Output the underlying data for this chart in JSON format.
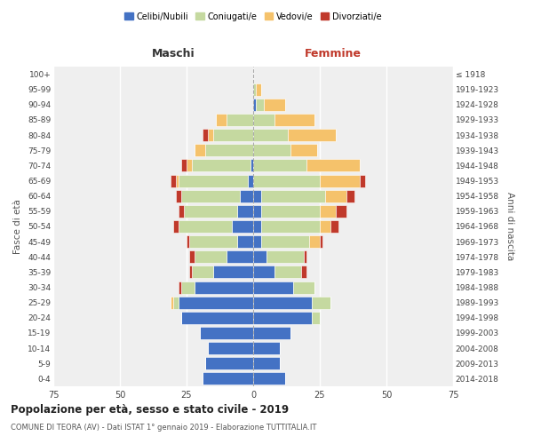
{
  "age_groups": [
    "0-4",
    "5-9",
    "10-14",
    "15-19",
    "20-24",
    "25-29",
    "30-34",
    "35-39",
    "40-44",
    "45-49",
    "50-54",
    "55-59",
    "60-64",
    "65-69",
    "70-74",
    "75-79",
    "80-84",
    "85-89",
    "90-94",
    "95-99",
    "100+"
  ],
  "birth_years": [
    "2014-2018",
    "2009-2013",
    "2004-2008",
    "1999-2003",
    "1994-1998",
    "1989-1993",
    "1984-1988",
    "1979-1983",
    "1974-1978",
    "1969-1973",
    "1964-1968",
    "1959-1963",
    "1954-1958",
    "1949-1953",
    "1944-1948",
    "1939-1943",
    "1934-1938",
    "1929-1933",
    "1924-1928",
    "1919-1923",
    "≤ 1918"
  ],
  "maschi": {
    "celibi": [
      19,
      18,
      17,
      20,
      27,
      28,
      22,
      15,
      10,
      6,
      8,
      6,
      5,
      2,
      1,
      0,
      0,
      0,
      0,
      0,
      0
    ],
    "coniugati": [
      0,
      0,
      0,
      0,
      0,
      2,
      5,
      8,
      12,
      18,
      20,
      20,
      22,
      26,
      22,
      18,
      15,
      10,
      0,
      0,
      0
    ],
    "vedovi": [
      0,
      0,
      0,
      0,
      0,
      1,
      0,
      0,
      0,
      0,
      0,
      0,
      0,
      1,
      2,
      4,
      2,
      4,
      0,
      0,
      0
    ],
    "divorziati": [
      0,
      0,
      0,
      0,
      0,
      0,
      1,
      1,
      2,
      1,
      2,
      2,
      2,
      2,
      2,
      0,
      2,
      0,
      0,
      0,
      0
    ]
  },
  "femmine": {
    "nubili": [
      12,
      10,
      10,
      14,
      22,
      22,
      15,
      8,
      5,
      3,
      3,
      3,
      3,
      0,
      0,
      0,
      0,
      0,
      1,
      0,
      0
    ],
    "coniugate": [
      0,
      0,
      0,
      0,
      3,
      7,
      8,
      10,
      14,
      18,
      22,
      22,
      24,
      25,
      20,
      14,
      13,
      8,
      3,
      1,
      0
    ],
    "vedove": [
      0,
      0,
      0,
      0,
      0,
      0,
      0,
      0,
      0,
      4,
      4,
      6,
      8,
      15,
      20,
      10,
      18,
      15,
      8,
      2,
      0
    ],
    "divorziate": [
      0,
      0,
      0,
      0,
      0,
      0,
      0,
      2,
      1,
      1,
      3,
      4,
      3,
      2,
      0,
      0,
      0,
      0,
      0,
      0,
      0
    ]
  },
  "colors": {
    "celibi": "#4472c4",
    "coniugati": "#c5d9a0",
    "vedovi": "#f5c26b",
    "divorziati": "#c0392b"
  },
  "title": "Popolazione per età, sesso e stato civile - 2019",
  "subtitle": "COMUNE DI TEORA (AV) - Dati ISTAT 1° gennaio 2019 - Elaborazione TUTTITALIA.IT",
  "xlabel_left": "Maschi",
  "xlabel_right": "Femmine",
  "ylabel_left": "Fasce di età",
  "ylabel_right": "Anni di nascita",
  "xlim": 75,
  "legend_labels": [
    "Celibi/Nubili",
    "Coniugati/e",
    "Vedovi/e",
    "Divorziati/e"
  ],
  "bg_color": "#efefef"
}
